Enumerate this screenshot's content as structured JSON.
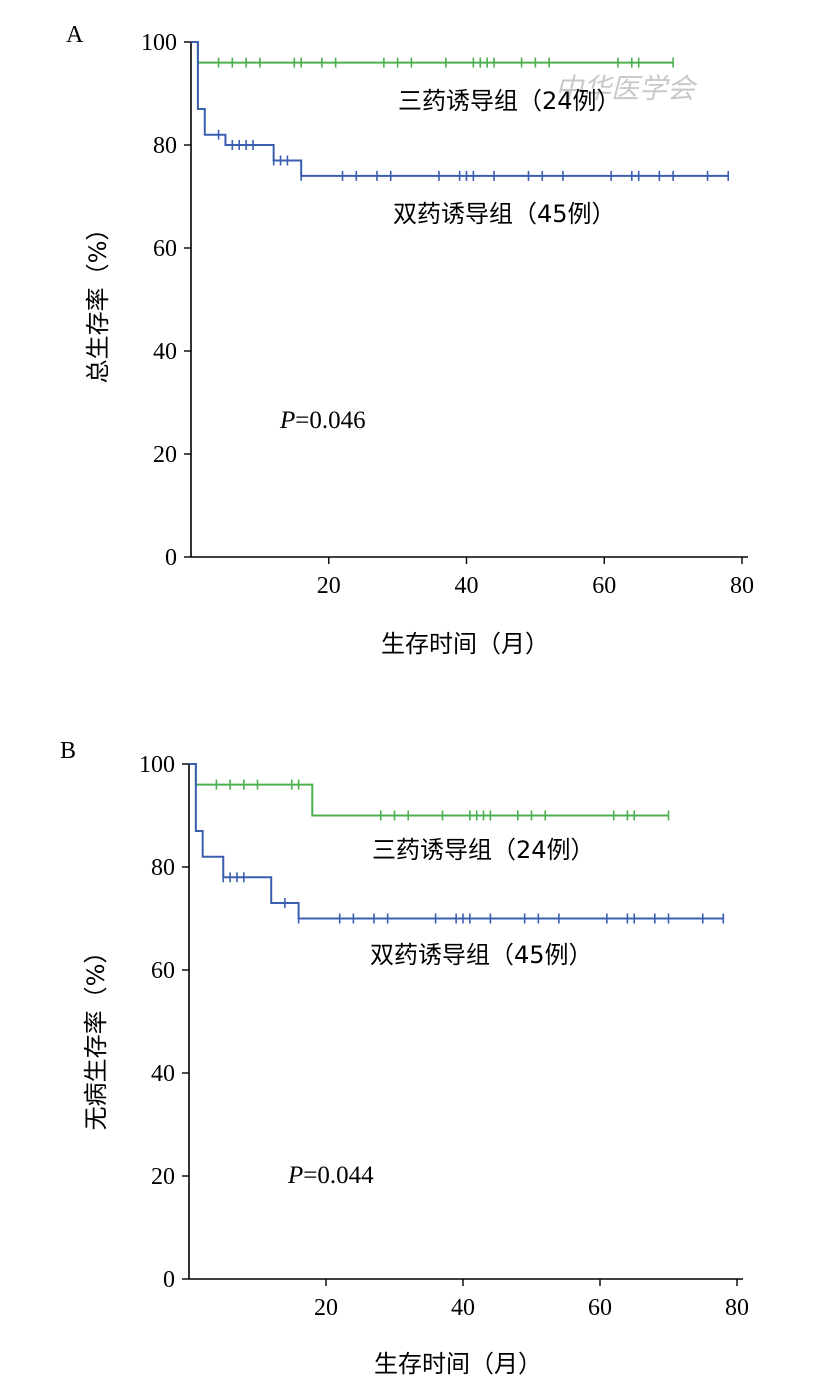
{
  "watermark": "中华医学会",
  "chart_data": [
    {
      "type": "line",
      "panel": "A",
      "ylabel": "总生存率（%）",
      "xlabel": "生存时间（月）",
      "xlim": [
        0,
        80
      ],
      "ylim": [
        0,
        100
      ],
      "xticks": [
        20,
        40,
        60,
        80
      ],
      "yticks": [
        0,
        20,
        40,
        60,
        80,
        100
      ],
      "annotation": "P=0.046",
      "annotation_italic": "P",
      "annotation_value": "=0.046",
      "series": [
        {
          "name": "三药诱导组（24例）",
          "color": "#4caf50",
          "steps": [
            [
              0,
              100
            ],
            [
              1,
              96
            ],
            [
              70,
              96
            ]
          ],
          "censored_x": [
            4,
            6,
            8,
            10,
            15,
            16,
            19,
            21,
            28,
            30,
            32,
            37,
            41,
            42,
            43,
            44,
            48,
            50,
            52,
            62,
            64,
            65,
            70
          ]
        },
        {
          "name": "双药诱导组（45例）",
          "color": "#3b5fb0",
          "steps": [
            [
              0,
              100
            ],
            [
              1,
              87
            ],
            [
              2,
              82
            ],
            [
              5,
              80
            ],
            [
              12,
              77
            ],
            [
              16,
              74
            ],
            [
              78,
              74
            ]
          ],
          "censored_x": [
            4,
            6,
            7,
            8,
            9,
            12,
            13,
            14,
            16,
            22,
            24,
            27,
            29,
            36,
            39,
            40,
            41,
            44,
            49,
            51,
            54,
            61,
            64,
            65,
            68,
            70,
            75,
            78
          ]
        }
      ]
    },
    {
      "type": "line",
      "panel": "B",
      "ylabel": "无病生存率（%）",
      "xlabel": "生存时间（月）",
      "xlim": [
        0,
        80
      ],
      "ylim": [
        0,
        100
      ],
      "xticks": [
        20,
        40,
        60,
        80
      ],
      "yticks": [
        0,
        20,
        40,
        60,
        80,
        100
      ],
      "annotation": "P=0.044",
      "annotation_italic": "P",
      "annotation_value": "=0.044",
      "series": [
        {
          "name": "三药诱导组（24例）",
          "color": "#4caf50",
          "steps": [
            [
              0,
              100
            ],
            [
              1,
              96
            ],
            [
              18,
              90
            ],
            [
              70,
              90
            ]
          ],
          "censored_x": [
            4,
            6,
            8,
            10,
            15,
            16,
            28,
            30,
            32,
            37,
            41,
            42,
            43,
            44,
            48,
            50,
            52,
            62,
            64,
            65,
            70
          ]
        },
        {
          "name": "双药诱导组（45例）",
          "color": "#3b5fb0",
          "steps": [
            [
              0,
              100
            ],
            [
              1,
              87
            ],
            [
              2,
              82
            ],
            [
              5,
              78
            ],
            [
              12,
              73
            ],
            [
              16,
              70
            ],
            [
              78,
              70
            ]
          ],
          "censored_x": [
            5,
            6,
            7,
            8,
            14,
            16,
            22,
            24,
            27,
            29,
            36,
            39,
            40,
            41,
            44,
            49,
            51,
            54,
            61,
            64,
            65,
            68,
            70,
            75,
            78
          ]
        }
      ]
    }
  ]
}
